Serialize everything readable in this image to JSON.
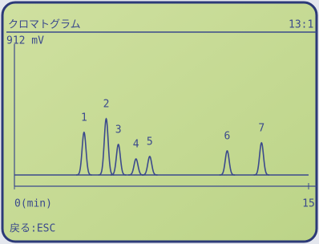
{
  "chart_data": {
    "type": "chromatogram",
    "title": "クロマトグラム",
    "clock": "13:1",
    "y_label": "912 mV",
    "footer": "戻る:ESC",
    "xlim": [
      0,
      15
    ],
    "ylim": [
      0,
      912
    ],
    "xticks": [
      {
        "value": 0,
        "label": "0(min)"
      },
      15
    ],
    "peaks": {
      "labels": [
        "1",
        "2",
        "3",
        "4",
        "5",
        "6",
        "7"
      ],
      "x": [
        3.55,
        4.68,
        5.3,
        6.2,
        6.9,
        10.85,
        12.6
      ],
      "values": [
        297,
        392,
        213,
        112,
        129,
        168,
        224
      ]
    },
    "color": "#3b4a8c"
  }
}
